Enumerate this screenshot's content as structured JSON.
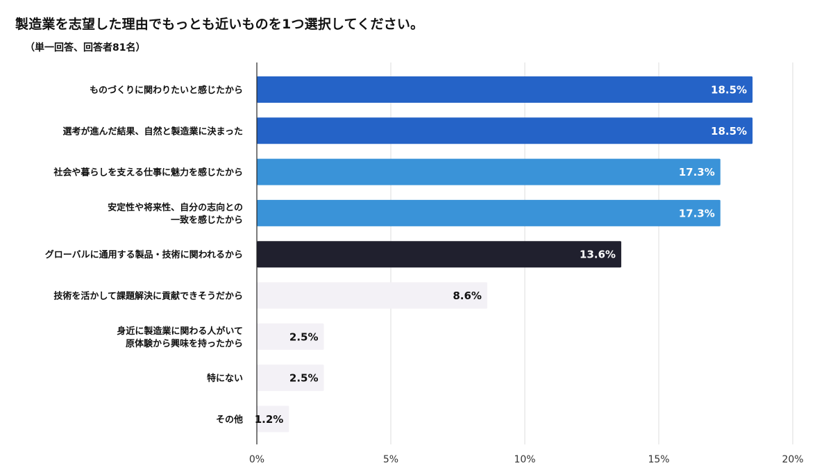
{
  "title": "製造業を志望した理由でもっとも近いものを1つ選択してください。",
  "subtitle": "（単一回答、回答者81名）",
  "chart_data": {
    "type": "bar",
    "orientation": "horizontal",
    "title": "製造業を志望した理由でもっとも近いものを1つ選択してください。",
    "subtitle": "（単一回答、回答者81名）",
    "categories": [
      [
        "ものづくりに関わりたいと感じたから"
      ],
      [
        "選考が進んだ結果、自然と製造業に決まった"
      ],
      [
        "社会や暮らしを支える仕事に魅力を感じたから"
      ],
      [
        "安定性や将来性、自分の志向との",
        "一致を感じたから"
      ],
      [
        "グローバルに通用する製品・技術に関われるから"
      ],
      [
        "技術を活かして課題解決に貢献できそうだから"
      ],
      [
        "身近に製造業に関わる人がいて",
        "原体験から興味を持ったから"
      ],
      [
        "特にない"
      ],
      [
        "その他"
      ]
    ],
    "values": [
      18.5,
      18.5,
      17.3,
      17.3,
      13.6,
      8.6,
      2.5,
      2.5,
      1.2
    ],
    "value_labels": [
      "18.5%",
      "18.5%",
      "17.3%",
      "17.3%",
      "13.6%",
      "8.6%",
      "2.5%",
      "2.5%",
      "1.2%"
    ],
    "bar_colors": [
      "#2563c7",
      "#2563c7",
      "#3a93d8",
      "#3a93d8",
      "#20202e",
      "#f3f1f6",
      "#f3f1f6",
      "#f3f1f6",
      "#f3f1f6"
    ],
    "label_colors": [
      "#ffffff",
      "#ffffff",
      "#ffffff",
      "#ffffff",
      "#ffffff",
      "#111111",
      "#111111",
      "#111111",
      "#111111"
    ],
    "xlim": [
      0,
      20
    ],
    "xticks": [
      0,
      5,
      10,
      15,
      20
    ],
    "xtick_labels": [
      "0%",
      "5%",
      "10%",
      "15%",
      "20%"
    ],
    "grid": true,
    "legend": "none"
  }
}
